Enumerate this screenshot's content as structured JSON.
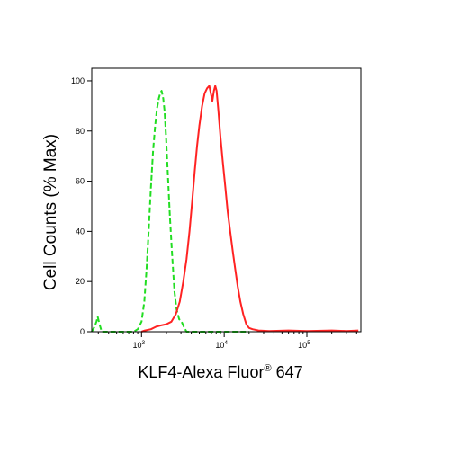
{
  "chart_data": {
    "type": "line",
    "xlabel": {
      "main": "KLF4-Alexa Fluor",
      "superscript": "®",
      "tail": " 647"
    },
    "ylabel": "Cell Counts (% Max)",
    "x_scale": "log",
    "xlim": [
      250,
      450000
    ],
    "ylim": [
      0,
      105
    ],
    "y_ticks": [
      "0",
      "20",
      "40",
      "60",
      "80",
      "100"
    ],
    "x_ticks": [
      {
        "base": "10",
        "exp": "3"
      },
      {
        "base": "10",
        "exp": "4"
      },
      {
        "base": "10",
        "exp": "5"
      }
    ],
    "grid": false,
    "legend": "none",
    "series": [
      {
        "color": "#22dd22",
        "style": "dashed",
        "points": [
          [
            250,
            0
          ],
          [
            270,
            2
          ],
          [
            285,
            4
          ],
          [
            295,
            6
          ],
          [
            310,
            3
          ],
          [
            330,
            0
          ],
          [
            600,
            0
          ],
          [
            800,
            0
          ],
          [
            900,
            1
          ],
          [
            1000,
            4
          ],
          [
            1080,
            12
          ],
          [
            1150,
            25
          ],
          [
            1220,
            40
          ],
          [
            1300,
            58
          ],
          [
            1380,
            72
          ],
          [
            1460,
            82
          ],
          [
            1540,
            89
          ],
          [
            1620,
            93
          ],
          [
            1680,
            95
          ],
          [
            1750,
            96
          ],
          [
            1830,
            93
          ],
          [
            1900,
            88
          ],
          [
            1980,
            78
          ],
          [
            2080,
            63
          ],
          [
            2200,
            46
          ],
          [
            2350,
            30
          ],
          [
            2500,
            16
          ],
          [
            2650,
            9
          ],
          [
            2850,
            5
          ],
          [
            3050,
            4
          ],
          [
            3250,
            2
          ],
          [
            3500,
            0
          ],
          [
            5000,
            0
          ],
          [
            10000,
            0
          ],
          [
            20000,
            0
          ]
        ]
      },
      {
        "color": "#ff2222",
        "style": "solid",
        "points": [
          [
            1000,
            0
          ],
          [
            1100,
            0.5
          ],
          [
            1300,
            1
          ],
          [
            1500,
            2
          ],
          [
            1700,
            2.5
          ],
          [
            2000,
            3
          ],
          [
            2300,
            4
          ],
          [
            2600,
            7
          ],
          [
            2900,
            12
          ],
          [
            3200,
            20
          ],
          [
            3500,
            29
          ],
          [
            3800,
            40
          ],
          [
            4100,
            52
          ],
          [
            4400,
            64
          ],
          [
            4700,
            74
          ],
          [
            5000,
            82
          ],
          [
            5400,
            90
          ],
          [
            5800,
            95
          ],
          [
            6200,
            97
          ],
          [
            6600,
            98
          ],
          [
            6900,
            95
          ],
          [
            7200,
            92
          ],
          [
            7500,
            96
          ],
          [
            7800,
            98
          ],
          [
            8100,
            96
          ],
          [
            8500,
            88
          ],
          [
            9000,
            78
          ],
          [
            9600,
            68
          ],
          [
            10300,
            58
          ],
          [
            11000,
            48
          ],
          [
            11800,
            40
          ],
          [
            12700,
            32
          ],
          [
            13600,
            25
          ],
          [
            14600,
            18
          ],
          [
            15700,
            12
          ],
          [
            17000,
            7
          ],
          [
            18500,
            3
          ],
          [
            20000,
            1.5
          ],
          [
            22000,
            1
          ],
          [
            26000,
            0.5
          ],
          [
            35000,
            0.3
          ],
          [
            60000,
            0.5
          ],
          [
            100000,
            0.3
          ],
          [
            200000,
            0.5
          ],
          [
            300000,
            0.3
          ],
          [
            420000,
            0.5
          ]
        ]
      }
    ]
  }
}
